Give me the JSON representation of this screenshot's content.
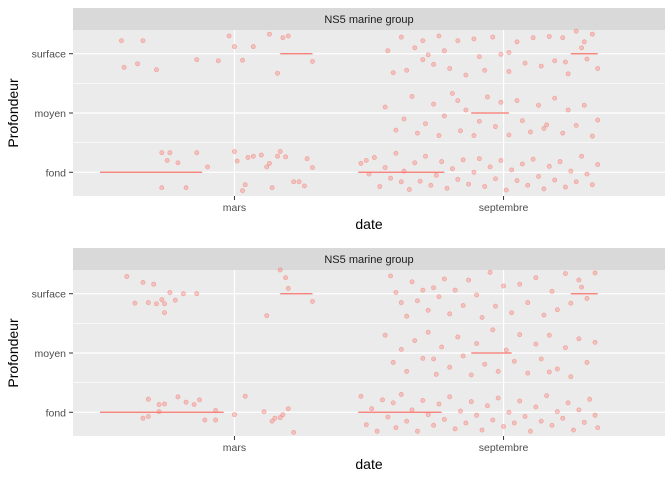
{
  "colors": {
    "panel_bg": "#ebebeb",
    "strip_bg": "#d9d9d9",
    "grid": "#ffffff",
    "point": "#f8766d",
    "tick": "#333333"
  },
  "chart_data": [
    {
      "type": "scatter",
      "subtype": "jitter-strip-with-segments",
      "strip_title": "NS5 marine group",
      "xlabel": "date",
      "ylabel": "Profondeur",
      "x_categories": [
        "mars",
        "septembre"
      ],
      "y_categories": [
        "fond",
        "moyen",
        "surface"
      ],
      "x_range": [
        0.4,
        2.6
      ],
      "y_range": [
        0.6,
        3.4
      ],
      "grid": true,
      "segments": [
        {
          "x0": 0.5,
          "x1": 0.88,
          "y": 1
        },
        {
          "x0": 1.17,
          "x1": 1.29,
          "y": 3
        },
        {
          "x0": 1.46,
          "x1": 1.78,
          "y": 1
        },
        {
          "x0": 1.88,
          "x1": 2.02,
          "y": 2
        },
        {
          "x0": 2.25,
          "x1": 2.35,
          "y": 3
        }
      ],
      "points": [
        [
          0.58,
          3.22
        ],
        [
          0.66,
          3.22
        ],
        [
          0.59,
          2.77
        ],
        [
          0.64,
          2.83
        ],
        [
          0.71,
          2.73
        ],
        [
          0.86,
          2.9
        ],
        [
          0.98,
          3.3
        ],
        [
          0.94,
          2.88
        ],
        [
          1.0,
          3.12
        ],
        [
          1.03,
          2.89
        ],
        [
          1.07,
          3.12
        ],
        [
          1.13,
          3.33
        ],
        [
          1.18,
          3.27
        ],
        [
          1.2,
          3.3
        ],
        [
          1.16,
          2.67
        ],
        [
          1.29,
          2.87
        ],
        [
          0.73,
          1.33
        ],
        [
          0.76,
          1.33
        ],
        [
          0.75,
          1.2
        ],
        [
          0.73,
          0.74
        ],
        [
          0.82,
          0.74
        ],
        [
          0.79,
          1.16
        ],
        [
          0.86,
          1.33
        ],
        [
          0.9,
          1.09
        ],
        [
          1.0,
          1.35
        ],
        [
          1.01,
          1.19
        ],
        [
          1.03,
          0.69
        ],
        [
          1.04,
          0.79
        ],
        [
          1.05,
          1.25
        ],
        [
          1.07,
          1.27
        ],
        [
          1.1,
          1.29
        ],
        [
          1.12,
          1.09
        ],
        [
          1.13,
          1.15
        ],
        [
          1.14,
          0.74
        ],
        [
          1.16,
          1.27
        ],
        [
          1.17,
          1.35
        ],
        [
          1.19,
          1.26
        ],
        [
          1.22,
          0.84
        ],
        [
          1.24,
          0.84
        ],
        [
          1.26,
          0.77
        ],
        [
          1.27,
          1.23
        ],
        [
          1.29,
          1.08
        ],
        [
          1.57,
          3.05
        ],
        [
          1.59,
          2.68
        ],
        [
          1.62,
          3.28
        ],
        [
          1.64,
          2.72
        ],
        [
          1.67,
          3.1
        ],
        [
          1.7,
          3.22
        ],
        [
          1.72,
          2.98
        ],
        [
          1.74,
          2.82
        ],
        [
          1.76,
          3.3
        ],
        [
          1.78,
          3.05
        ],
        [
          1.8,
          2.75
        ],
        [
          1.83,
          3.22
        ],
        [
          1.86,
          2.64
        ],
        [
          1.89,
          3.25
        ],
        [
          1.91,
          2.95
        ],
        [
          1.93,
          2.72
        ],
        [
          1.96,
          3.28
        ],
        [
          1.99,
          2.99
        ],
        [
          2.02,
          2.7
        ],
        [
          2.05,
          3.2
        ],
        [
          2.08,
          2.84
        ],
        [
          2.11,
          3.27
        ],
        [
          2.14,
          2.79
        ],
        [
          2.17,
          3.29
        ],
        [
          2.19,
          2.88
        ],
        [
          2.22,
          3.27
        ],
        [
          2.24,
          2.66
        ],
        [
          2.27,
          3.38
        ],
        [
          2.29,
          3.1
        ],
        [
          2.31,
          2.91
        ],
        [
          2.33,
          3.33
        ],
        [
          2.35,
          2.75
        ],
        [
          2.3,
          3.2
        ],
        [
          2.23,
          2.86
        ],
        [
          2.02,
          3.02
        ],
        [
          1.7,
          2.9
        ],
        [
          1.56,
          2.1
        ],
        [
          1.6,
          1.71
        ],
        [
          1.63,
          1.9
        ],
        [
          1.66,
          2.28
        ],
        [
          1.68,
          1.66
        ],
        [
          1.71,
          1.82
        ],
        [
          1.74,
          2.15
        ],
        [
          1.76,
          1.62
        ],
        [
          1.78,
          1.95
        ],
        [
          1.81,
          2.33
        ],
        [
          1.84,
          1.7
        ],
        [
          1.86,
          2.05
        ],
        [
          1.89,
          1.62
        ],
        [
          1.91,
          1.86
        ],
        [
          1.94,
          2.27
        ],
        [
          1.97,
          1.77
        ],
        [
          1.99,
          2.18
        ],
        [
          2.02,
          1.63
        ],
        [
          2.05,
          2.21
        ],
        [
          2.07,
          1.87
        ],
        [
          2.1,
          1.68
        ],
        [
          2.13,
          2.13
        ],
        [
          2.16,
          1.8
        ],
        [
          2.19,
          2.25
        ],
        [
          2.22,
          1.66
        ],
        [
          2.24,
          2.05
        ],
        [
          2.27,
          1.79
        ],
        [
          2.3,
          2.13
        ],
        [
          2.33,
          1.61
        ],
        [
          2.35,
          1.88
        ],
        [
          2.15,
          1.74
        ],
        [
          1.83,
          2.21
        ],
        [
          1.47,
          1.15
        ],
        [
          1.49,
          1.2
        ],
        [
          1.5,
          0.97
        ],
        [
          1.52,
          1.25
        ],
        [
          1.54,
          0.76
        ],
        [
          1.56,
          1.08
        ],
        [
          1.58,
          0.9
        ],
        [
          1.6,
          1.32
        ],
        [
          1.62,
          0.84
        ],
        [
          1.63,
          1.02
        ],
        [
          1.65,
          0.71
        ],
        [
          1.67,
          1.16
        ],
        [
          1.69,
          0.85
        ],
        [
          1.71,
          1.27
        ],
        [
          1.73,
          0.78
        ],
        [
          1.75,
          0.95
        ],
        [
          1.77,
          1.18
        ],
        [
          1.79,
          0.73
        ],
        [
          1.81,
          1.06
        ],
        [
          1.83,
          0.88
        ],
        [
          1.85,
          1.21
        ],
        [
          1.87,
          0.8
        ],
        [
          1.89,
          1.0
        ],
        [
          1.91,
          1.23
        ],
        [
          1.93,
          0.76
        ],
        [
          1.95,
          1.09
        ],
        [
          1.97,
          0.89
        ],
        [
          1.99,
          1.2
        ],
        [
          2.01,
          0.7
        ],
        [
          2.03,
          1.04
        ],
        [
          2.05,
          0.86
        ],
        [
          2.07,
          1.14
        ],
        [
          2.09,
          0.78
        ],
        [
          2.11,
          1.22
        ],
        [
          2.13,
          0.93
        ],
        [
          2.15,
          0.72
        ],
        [
          2.17,
          1.1
        ],
        [
          2.19,
          0.87
        ],
        [
          2.21,
          1.18
        ],
        [
          2.23,
          0.75
        ],
        [
          2.25,
          1.02
        ],
        [
          2.27,
          0.84
        ],
        [
          2.29,
          1.27
        ],
        [
          2.31,
          0.97
        ],
        [
          2.33,
          0.79
        ],
        [
          2.35,
          1.13
        ]
      ]
    },
    {
      "type": "scatter",
      "subtype": "jitter-strip-with-segments",
      "strip_title": "NS5 marine group",
      "xlabel": "date",
      "ylabel": "Profondeur",
      "x_categories": [
        "mars",
        "septembre"
      ],
      "y_categories": [
        "fond",
        "moyen",
        "surface"
      ],
      "x_range": [
        0.4,
        2.6
      ],
      "y_range": [
        0.6,
        3.4
      ],
      "grid": true,
      "segments": [
        {
          "x0": 0.5,
          "x1": 0.96,
          "y": 1
        },
        {
          "x0": 1.17,
          "x1": 1.29,
          "y": 3
        },
        {
          "x0": 1.46,
          "x1": 1.77,
          "y": 1
        },
        {
          "x0": 1.88,
          "x1": 2.03,
          "y": 2
        },
        {
          "x0": 2.25,
          "x1": 2.35,
          "y": 3
        }
      ],
      "points": [
        [
          0.6,
          3.29
        ],
        [
          0.63,
          2.84
        ],
        [
          0.66,
          3.19
        ],
        [
          0.68,
          2.85
        ],
        [
          0.7,
          3.16
        ],
        [
          0.71,
          2.83
        ],
        [
          0.73,
          2.9
        ],
        [
          0.74,
          2.83
        ],
        [
          0.76,
          3.02
        ],
        [
          0.78,
          2.89
        ],
        [
          0.81,
          3.0
        ],
        [
          0.86,
          3.0
        ],
        [
          0.74,
          2.68
        ],
        [
          1.12,
          2.63
        ],
        [
          1.17,
          3.4
        ],
        [
          1.2,
          3.09
        ],
        [
          1.19,
          3.27
        ],
        [
          1.29,
          2.87
        ],
        [
          0.68,
          1.22
        ],
        [
          0.72,
          1.13
        ],
        [
          0.74,
          1.14
        ],
        [
          0.79,
          1.26
        ],
        [
          0.82,
          1.17
        ],
        [
          0.85,
          1.13
        ],
        [
          0.87,
          1.21
        ],
        [
          0.66,
          0.9
        ],
        [
          0.68,
          0.93
        ],
        [
          0.72,
          1.01
        ],
        [
          0.89,
          0.87
        ],
        [
          0.93,
          0.87
        ],
        [
          0.93,
          1.03
        ],
        [
          1.0,
          0.96
        ],
        [
          1.04,
          1.27
        ],
        [
          1.11,
          1.01
        ],
        [
          1.14,
          0.85
        ],
        [
          1.15,
          0.9
        ],
        [
          1.17,
          0.91
        ],
        [
          1.18,
          0.96
        ],
        [
          1.2,
          1.06
        ],
        [
          1.22,
          0.66
        ],
        [
          1.58,
          3.3
        ],
        [
          1.6,
          3.02
        ],
        [
          1.62,
          2.85
        ],
        [
          1.64,
          2.62
        ],
        [
          1.66,
          3.2
        ],
        [
          1.68,
          2.88
        ],
        [
          1.7,
          3.06
        ],
        [
          1.72,
          2.72
        ],
        [
          1.74,
          3.1
        ],
        [
          1.76,
          2.95
        ],
        [
          1.78,
          3.25
        ],
        [
          1.8,
          2.66
        ],
        [
          1.82,
          3.06
        ],
        [
          1.85,
          2.8
        ],
        [
          1.87,
          3.23
        ],
        [
          1.9,
          2.98
        ],
        [
          1.92,
          2.6
        ],
        [
          1.95,
          3.36
        ],
        [
          1.97,
          2.79
        ],
        [
          2.0,
          3.13
        ],
        [
          2.03,
          2.68
        ],
        [
          2.06,
          3.16
        ],
        [
          2.09,
          2.85
        ],
        [
          2.12,
          3.27
        ],
        [
          2.15,
          2.64
        ],
        [
          2.18,
          3.04
        ],
        [
          2.2,
          2.73
        ],
        [
          2.23,
          3.34
        ],
        [
          2.25,
          2.84
        ],
        [
          2.28,
          3.23
        ],
        [
          2.31,
          2.92
        ],
        [
          2.34,
          3.35
        ],
        [
          2.29,
          3.11
        ],
        [
          1.56,
          2.3
        ],
        [
          1.59,
          1.84
        ],
        [
          1.62,
          2.06
        ],
        [
          1.64,
          1.69
        ],
        [
          1.67,
          2.21
        ],
        [
          1.7,
          1.91
        ],
        [
          1.72,
          2.35
        ],
        [
          1.75,
          1.64
        ],
        [
          1.77,
          2.1
        ],
        [
          1.8,
          1.76
        ],
        [
          1.83,
          2.27
        ],
        [
          1.85,
          1.95
        ],
        [
          1.88,
          1.63
        ],
        [
          1.9,
          2.16
        ],
        [
          1.93,
          1.81
        ],
        [
          1.96,
          2.39
        ],
        [
          1.98,
          1.69
        ],
        [
          2.01,
          2.05
        ],
        [
          2.04,
          1.86
        ],
        [
          2.06,
          2.31
        ],
        [
          2.09,
          1.66
        ],
        [
          2.12,
          2.15
        ],
        [
          2.14,
          1.9
        ],
        [
          2.17,
          2.3
        ],
        [
          2.2,
          1.73
        ],
        [
          2.23,
          2.09
        ],
        [
          2.25,
          1.6
        ],
        [
          2.28,
          2.24
        ],
        [
          2.31,
          1.84
        ],
        [
          2.34,
          2.18
        ],
        [
          1.74,
          1.9
        ],
        [
          2.17,
          1.68
        ],
        [
          1.47,
          1.27
        ],
        [
          1.49,
          0.79
        ],
        [
          1.51,
          1.06
        ],
        [
          1.53,
          0.68
        ],
        [
          1.55,
          1.21
        ],
        [
          1.57,
          0.92
        ],
        [
          1.59,
          1.16
        ],
        [
          1.6,
          0.74
        ],
        [
          1.62,
          1.3
        ],
        [
          1.64,
          0.85
        ],
        [
          1.66,
          1.04
        ],
        [
          1.68,
          0.68
        ],
        [
          1.7,
          1.2
        ],
        [
          1.72,
          0.96
        ],
        [
          1.74,
          0.78
        ],
        [
          1.76,
          1.14
        ],
        [
          1.78,
          0.88
        ],
        [
          1.8,
          1.26
        ],
        [
          1.82,
          0.72
        ],
        [
          1.84,
          1.02
        ],
        [
          1.86,
          0.82
        ],
        [
          1.88,
          1.18
        ],
        [
          1.9,
          0.95
        ],
        [
          1.92,
          0.7
        ],
        [
          1.94,
          1.11
        ],
        [
          1.96,
          0.87
        ],
        [
          1.98,
          1.24
        ],
        [
          2.0,
          0.76
        ],
        [
          2.02,
          1.0
        ],
        [
          2.04,
          0.82
        ],
        [
          2.06,
          1.19
        ],
        [
          2.08,
          0.93
        ],
        [
          2.1,
          0.68
        ],
        [
          2.12,
          1.09
        ],
        [
          2.14,
          0.85
        ],
        [
          2.16,
          1.28
        ],
        [
          2.18,
          0.78
        ],
        [
          2.2,
          1.01
        ],
        [
          2.22,
          0.9
        ],
        [
          2.24,
          1.16
        ],
        [
          2.26,
          0.7
        ],
        [
          2.28,
          1.04
        ],
        [
          2.3,
          0.83
        ],
        [
          2.32,
          1.22
        ],
        [
          2.34,
          0.95
        ],
        [
          2.35,
          0.74
        ]
      ]
    }
  ]
}
